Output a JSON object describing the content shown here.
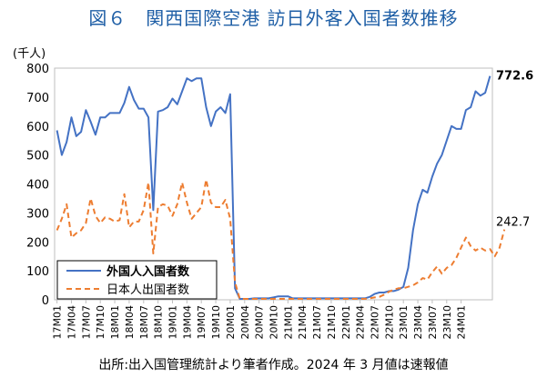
{
  "title": "図６　関西国際空港  訪日外客入国者数推移",
  "unit_label": "(千人)",
  "source_note": "出所:出入国管理統計より筆者作成。2024 年 3 月値は速報値",
  "colors": {
    "title": "#1f5fa6",
    "foreign": "#4472c4",
    "japanese": "#ed7d31"
  },
  "chart_data": {
    "type": "line",
    "ylim": [
      0,
      800
    ],
    "yticks": [
      0,
      100,
      200,
      300,
      400,
      500,
      600,
      700,
      800
    ],
    "xtick_labels": [
      "17M01",
      "17M04",
      "17M07",
      "17M10",
      "18M01",
      "18M04",
      "18M07",
      "18M10",
      "19M01",
      "19M04",
      "19M07",
      "19M10",
      "20M01",
      "20M04",
      "20M07",
      "20M10",
      "21M01",
      "21M04",
      "21M07",
      "21M10",
      "22M01",
      "22M04",
      "22M07",
      "22M10",
      "23M01",
      "23M04",
      "23M07",
      "23M10",
      "24M01"
    ],
    "legend_position": "bottom-left",
    "series": [
      {
        "name": "外国人入国者数",
        "color": "#4472c4",
        "style": "solid",
        "end_label": "772.6",
        "values": [
          585,
          500,
          545,
          630,
          565,
          580,
          655,
          615,
          570,
          630,
          630,
          645,
          645,
          645,
          680,
          735,
          690,
          660,
          660,
          630,
          310,
          650,
          655,
          665,
          695,
          675,
          720,
          765,
          755,
          765,
          765,
          665,
          600,
          650,
          665,
          645,
          710,
          40,
          3,
          3,
          3,
          5,
          5,
          5,
          5,
          8,
          12,
          12,
          12,
          5,
          5,
          5,
          5,
          5,
          5,
          5,
          5,
          5,
          5,
          5,
          5,
          5,
          5,
          5,
          5,
          10,
          20,
          25,
          25,
          30,
          30,
          35,
          45,
          110,
          240,
          330,
          380,
          370,
          425,
          470,
          500,
          550,
          600,
          590,
          590,
          655,
          665,
          720,
          705,
          715,
          772.6
        ]
      },
      {
        "name": "日本人出国者数",
        "color": "#ed7d31",
        "style": "dashed",
        "end_label": "242.7",
        "values": [
          240,
          280,
          330,
          215,
          230,
          240,
          265,
          350,
          290,
          265,
          285,
          280,
          270,
          275,
          365,
          250,
          270,
          270,
          310,
          405,
          160,
          320,
          330,
          325,
          290,
          330,
          405,
          335,
          280,
          300,
          320,
          415,
          335,
          320,
          320,
          345,
          280,
          60,
          3,
          3,
          3,
          3,
          3,
          3,
          3,
          3,
          3,
          3,
          3,
          3,
          3,
          3,
          3,
          3,
          3,
          3,
          3,
          3,
          3,
          3,
          3,
          3,
          3,
          3,
          3,
          5,
          8,
          10,
          18,
          28,
          35,
          40,
          40,
          45,
          50,
          60,
          75,
          70,
          95,
          115,
          90,
          110,
          120,
          145,
          180,
          215,
          185,
          170,
          180,
          170,
          175,
          150,
          180,
          242.7
        ]
      }
    ]
  }
}
